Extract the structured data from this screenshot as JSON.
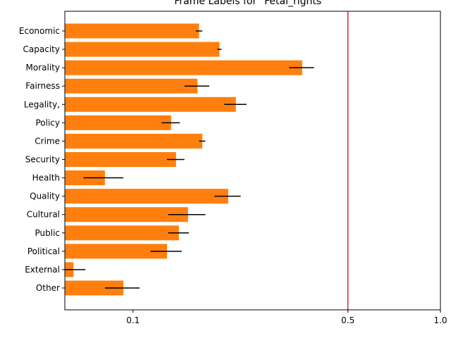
{
  "chart_data": {
    "type": "bar",
    "orientation": "horizontal",
    "title": "Frame Labels for \"Fetal_rights\"",
    "xlabel": "",
    "ylabel": "",
    "xscale": "log",
    "xlim": [
      0.06,
      1.0
    ],
    "xticks": [
      0.1,
      0.5,
      1.0
    ],
    "xtick_labels": [
      "0.1",
      "0.5",
      "1.0"
    ],
    "bar_color": "#ff7f0e",
    "errorbar_color": "#000000",
    "reference_line": {
      "x": 0.5,
      "color": "#d62728"
    },
    "grid": false,
    "legend": "none",
    "categories": [
      "Economic",
      "Capacity",
      "Morality",
      "Fairness",
      "Legality,",
      "Policy",
      "Crime",
      "Security",
      "Health",
      "Quality",
      "Cultural",
      "Public",
      "Political",
      "External",
      "Other"
    ],
    "values": [
      0.164,
      0.191,
      0.355,
      0.162,
      0.216,
      0.133,
      0.168,
      0.138,
      0.081,
      0.204,
      0.151,
      0.141,
      0.129,
      0.064,
      0.093
    ],
    "errors": [
      0.004,
      0.003,
      0.033,
      0.015,
      0.018,
      0.009,
      0.004,
      0.009,
      0.012,
      0.02,
      0.021,
      0.011,
      0.015,
      0.006,
      0.012
    ]
  }
}
